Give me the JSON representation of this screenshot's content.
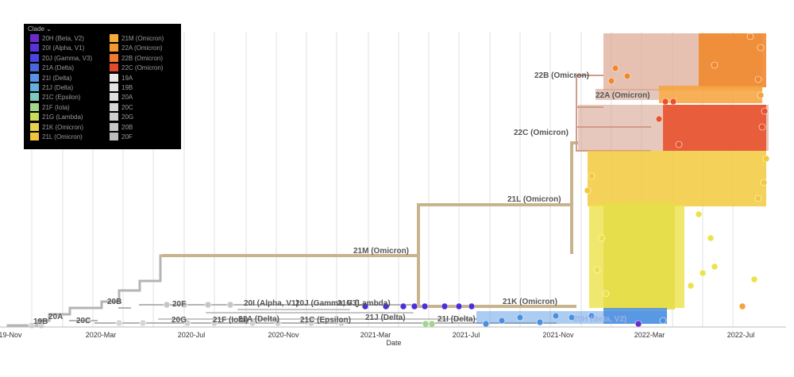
{
  "legend": {
    "title": "Clade",
    "title_icon": "chevron-down-icon",
    "items": [
      {
        "label": "20H (Beta, V2)",
        "color": "#6a2bc8"
      },
      {
        "label": "20I (Alpha, V1)",
        "color": "#5733d8"
      },
      {
        "label": "20J (Gamma, V3)",
        "color": "#4a45e0"
      },
      {
        "label": "21A (Delta)",
        "color": "#4a68dc"
      },
      {
        "label": "21I (Delta)",
        "color": "#5a92e6"
      },
      {
        "label": "21J (Delta)",
        "color": "#64aee0"
      },
      {
        "label": "21C (Epsilon)",
        "color": "#7ec9bd"
      },
      {
        "label": "21F (Iota)",
        "color": "#a1d68a"
      },
      {
        "label": "21G (Lambda)",
        "color": "#cadb5c"
      },
      {
        "label": "21K (Omicron)",
        "color": "#e5d44b"
      },
      {
        "label": "21L (Omicron)",
        "color": "#f0c43e"
      },
      {
        "label": "21M (Omicron)",
        "color": "#f5ab39"
      },
      {
        "label": "22A (Omicron)",
        "color": "#f39a35"
      },
      {
        "label": "22B (Omicron)",
        "color": "#ef7a30"
      },
      {
        "label": "22C (Omicron)",
        "color": "#e54a2c"
      },
      {
        "label": "19A",
        "color": "#eaeaea"
      },
      {
        "label": "19B",
        "color": "#e4e4e4"
      },
      {
        "label": "20A",
        "color": "#dedede"
      },
      {
        "label": "20C",
        "color": "#d6d6d6"
      },
      {
        "label": "20G",
        "color": "#cfcfcf"
      },
      {
        "label": "20B",
        "color": "#c6c6c6"
      },
      {
        "label": "20F",
        "color": "#bdbdbd"
      }
    ]
  },
  "axis": {
    "label": "Date",
    "ticks": [
      "19-Nov",
      "2020-Mar",
      "2020-Jul",
      "2020-Nov",
      "2021-Mar",
      "2021-Jul",
      "2021-Nov",
      "2022-Mar",
      "2022-Jul"
    ]
  },
  "branch_labels": [
    "22B (Omicron)",
    "22A (Omicron)",
    "22C (Omicron)",
    "21L (Omicron)",
    "21M (Omicron)",
    "21K (Omicron)",
    "20B",
    "20F",
    "20I (Alpha, V1)",
    "20J (Gamma, V3)",
    "21G (Lambda)",
    "20A",
    "19B",
    "20C",
    "20G",
    "21F (Iota)",
    "21A (Delta)",
    "21C (Epsilon)",
    "21J (Delta)",
    "21I (Delta)",
    "20H (Beta, V2)"
  ],
  "colors": {
    "omicron_trunk": "#c8b48c",
    "grey_branch": "#b4b4b4",
    "gridline": "#e2e2e2",
    "clade_22B": "#f0882f",
    "clade_22A": "#f6a23a",
    "clade_22C": "#e8522e",
    "clade_21L": "#f2c93c",
    "clade_21K": "#ece24a",
    "blue_tips": "#4a8fe0",
    "purple_tips": "#4b2fd6"
  }
}
